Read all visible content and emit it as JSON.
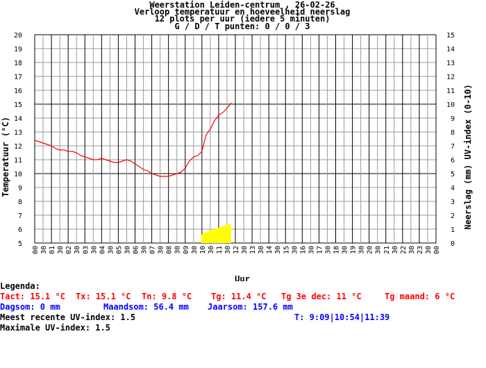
{
  "header": {
    "line1": "Weerstation Leiden-centrum , 26-02-26",
    "line2": "Verloop temperatuur en hoeveelheid neerslag",
    "line3": "12 plots per uur (iedere 5 minuten)",
    "line4": "G / D / T punten: 0 / 0 / 3"
  },
  "chart_data": {
    "type": "line",
    "xlabel": "Uur",
    "ylabel_left": "Temperatuur (°C)",
    "ylabel_right": "Neerslag (mm)  UV-index (0-10)",
    "ylim_left": [
      5,
      20
    ],
    "ylim_right": [
      0,
      15
    ],
    "x_ticks": [
      "00",
      "01",
      "02",
      "03",
      "04",
      "05",
      "06",
      "07",
      "08",
      "09",
      "10",
      "11",
      "12",
      "13",
      "14",
      "15",
      "16",
      "17",
      "18",
      "19",
      "20",
      "21",
      "22",
      "23",
      "00"
    ],
    "x_minor_label": "30",
    "y_ticks_left": [
      5,
      6,
      7,
      8,
      9,
      10,
      11,
      12,
      13,
      14,
      15,
      16,
      17,
      18,
      19,
      20
    ],
    "y_ticks_right": [
      0,
      1,
      2,
      3,
      4,
      5,
      6,
      7,
      8,
      9,
      10,
      11,
      12,
      13,
      14,
      15
    ],
    "grid": true,
    "series": [
      {
        "color": "#ff0000",
        "x": [
          0,
          0.25,
          0.5,
          0.75,
          1,
          1.25,
          1.5,
          1.75,
          2,
          2.25,
          2.5,
          2.75,
          3,
          3.25,
          3.5,
          3.75,
          4,
          4.25,
          4.5,
          4.75,
          5,
          5.25,
          5.5,
          5.75,
          6,
          6.25,
          6.5,
          6.75,
          7,
          7.25,
          7.5,
          7.75,
          8,
          8.25,
          8.5,
          8.75,
          9,
          9.25,
          9.5,
          9.75,
          10,
          10.25,
          10.5,
          10.75,
          11,
          11.25,
          11.5,
          11.75
        ],
        "values": [
          12.4,
          12.3,
          12.2,
          12.1,
          12.0,
          11.8,
          11.7,
          11.7,
          11.6,
          11.6,
          11.5,
          11.3,
          11.2,
          11.1,
          11.0,
          11.0,
          11.1,
          11.0,
          10.9,
          10.8,
          10.8,
          10.9,
          11.0,
          10.9,
          10.7,
          10.5,
          10.3,
          10.2,
          10.0,
          9.9,
          9.8,
          9.8,
          9.8,
          9.9,
          10.0,
          10.1,
          10.4,
          10.9,
          11.2,
          11.3,
          11.6,
          12.8,
          13.2,
          13.8,
          14.2,
          14.4,
          14.7,
          15.1
        ]
      },
      {
        "color": "#ffff00",
        "type": "area",
        "axis": "right",
        "x": [
          9.95,
          10.25,
          10.5,
          10.75,
          11,
          11.25,
          11.5,
          11.75
        ],
        "values": [
          0.6,
          0.8,
          0.9,
          1.0,
          1.1,
          1.2,
          1.3,
          1.4
        ]
      }
    ]
  },
  "legend": {
    "title": "Legenda:",
    "tact": "Tact: 15.1 °C",
    "tx": "Tx: 15.1 °C",
    "tn": "Tn: 9.8 °C",
    "tg": "Tg: 11.4 °C",
    "tg3": "Tg 3e dec: 11 °C",
    "tgmaand": "Tg maand: 6 °C",
    "dagsom": "Dagsom: 0 mm",
    "maandsom": "Maandsom: 56.4 mm",
    "jaarsom": "Jaarsom: 157.6 mm",
    "uv_recent": "Meest recente UV-index: 1.5",
    "uv_times": "T: 9:09|10:54|11:39",
    "uv_max": "Maximale UV-index: 1.5"
  },
  "colors": {
    "temperature": "#ff0000",
    "uv": "#ffff00",
    "legend_red": "#ff0000",
    "legend_blue": "#0000ff"
  }
}
